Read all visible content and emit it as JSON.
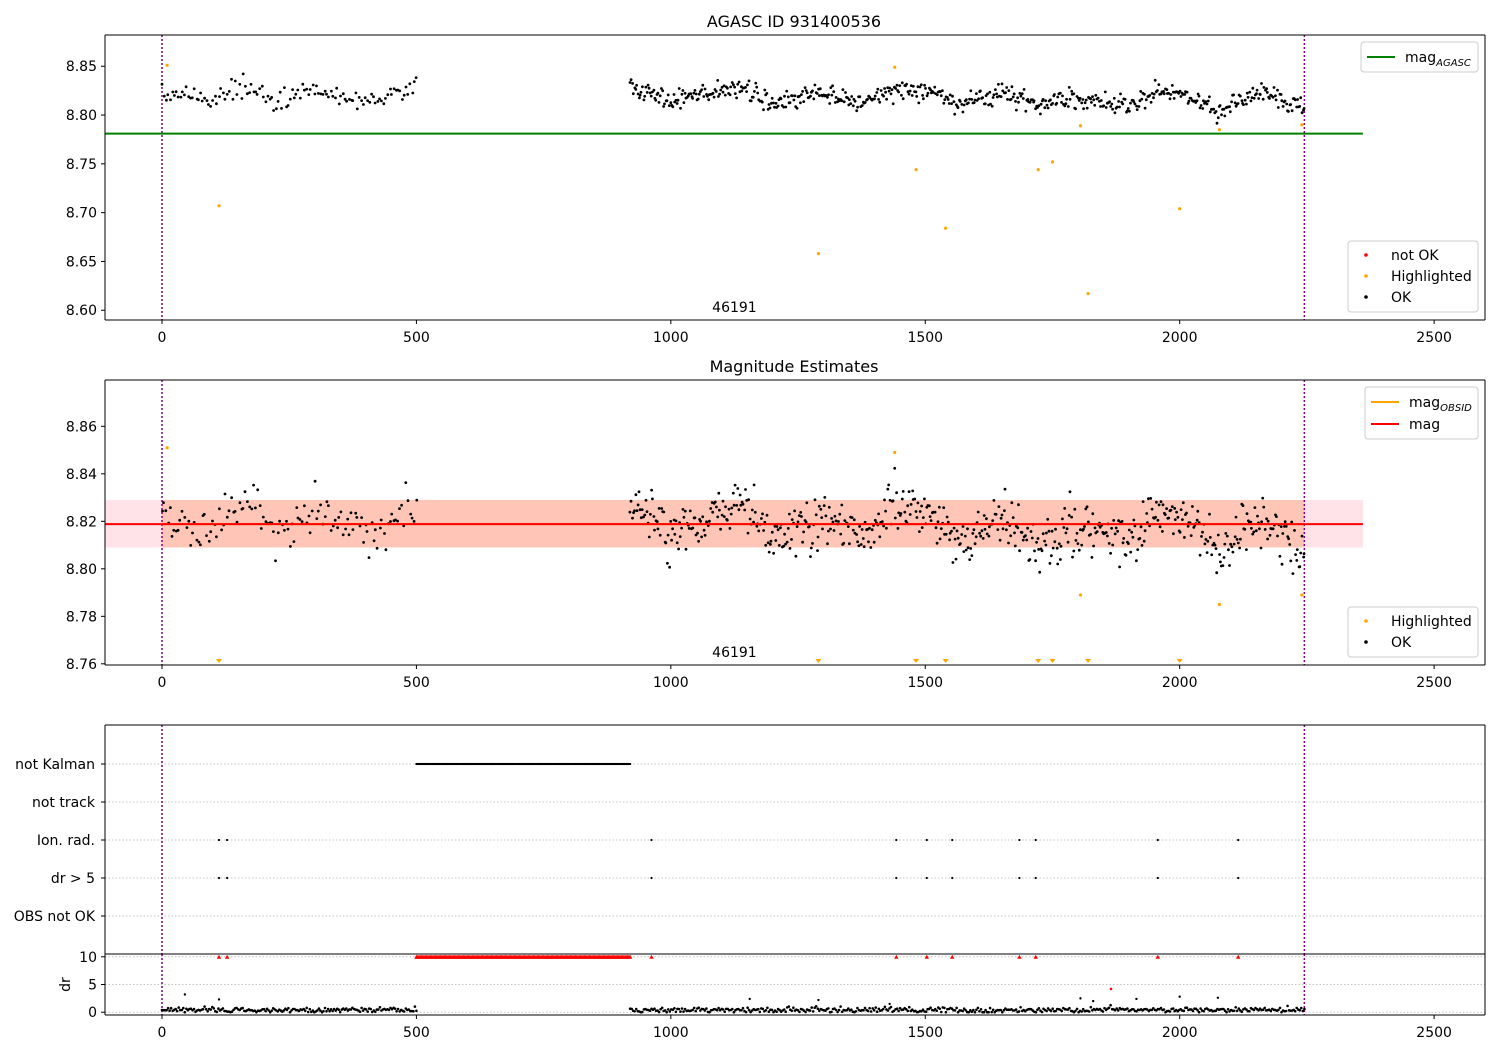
{
  "figure": {
    "colors": {
      "ok": "#000000",
      "highlighted": "#ffa500",
      "not_ok": "#ff0000",
      "agasc_line": "#008000",
      "obsid_line": "#ffa500",
      "mag_line": "#ff0000",
      "band": "#ffc0cb",
      "band_overlap": "#ffa07a",
      "obsid_boundary": "#800080"
    }
  },
  "chart_data": [
    {
      "type": "scatter",
      "title": "AGASC ID 931400536",
      "xlabel": "",
      "ylabel": "",
      "xlim": [
        -112,
        2600
      ],
      "ylim": [
        8.59,
        8.882
      ],
      "xticks": [
        0,
        500,
        1000,
        1500,
        2000,
        2500
      ],
      "xtick_labels": [
        "0",
        "500",
        "1000",
        "1500",
        "2000",
        "2500"
      ],
      "yticks": [
        8.6,
        8.65,
        8.7,
        8.75,
        8.8,
        8.85
      ],
      "ytick_labels": [
        "8.60",
        "8.65",
        "8.70",
        "8.75",
        "8.80",
        "8.85"
      ],
      "obsid_label": "46191",
      "obsid_label_x": 1125,
      "obsid_bounds": [
        0,
        2245
      ],
      "lines": [
        {
          "name": "mag_AGASC",
          "y": 8.781,
          "x": [
            -112,
            2360
          ],
          "color": "agasc_line"
        }
      ],
      "line_legend": [
        {
          "label": "mag",
          "sub": "AGASC",
          "color": "agasc_line"
        }
      ],
      "scatter_legend": [
        {
          "label": "not OK",
          "color": "not_ok"
        },
        {
          "label": "Highlighted",
          "color": "highlighted"
        },
        {
          "label": "OK",
          "color": "ok"
        }
      ],
      "ok_series": {
        "segments": [
          [
            0,
            500,
            4
          ],
          [
            920,
            2245,
            2.2
          ]
        ],
        "level_knots": [
          [
            0,
            8.826
          ],
          [
            50,
            8.818
          ],
          [
            100,
            8.816
          ],
          [
            170,
            8.831
          ],
          [
            220,
            8.814
          ],
          [
            300,
            8.826
          ],
          [
            420,
            8.812
          ],
          [
            480,
            8.826
          ],
          [
            500,
            8.825
          ],
          [
            920,
            8.828
          ],
          [
            1000,
            8.814
          ],
          [
            1140,
            8.828
          ],
          [
            1200,
            8.812
          ],
          [
            1300,
            8.822
          ],
          [
            1380,
            8.813
          ],
          [
            1440,
            8.827
          ],
          [
            1520,
            8.823
          ],
          [
            1560,
            8.811
          ],
          [
            1650,
            8.822
          ],
          [
            1720,
            8.81
          ],
          [
            1800,
            8.816
          ],
          [
            1900,
            8.81
          ],
          [
            1960,
            8.825
          ],
          [
            2030,
            8.818
          ],
          [
            2080,
            8.804
          ],
          [
            2160,
            8.824
          ],
          [
            2220,
            8.812
          ],
          [
            2245,
            8.806
          ]
        ],
        "spread": 0.009
      },
      "highlighted": [
        [
          10,
          8.851
        ],
        [
          112,
          8.707
        ],
        [
          1290,
          8.658
        ],
        [
          1440,
          8.849
        ],
        [
          1482,
          8.744
        ],
        [
          1540,
          8.684
        ],
        [
          1722,
          8.744
        ],
        [
          1750,
          8.752
        ],
        [
          1805,
          8.789
        ],
        [
          1820,
          8.617
        ],
        [
          2000,
          8.704
        ],
        [
          2078,
          8.785
        ],
        [
          2240,
          8.79
        ]
      ]
    },
    {
      "type": "scatter",
      "title": "Magnitude Estimates",
      "xlabel": "",
      "ylabel": "",
      "xlim": [
        -112,
        2600
      ],
      "ylim": [
        8.7595,
        8.8795
      ],
      "xticks": [
        0,
        500,
        1000,
        1500,
        2000,
        2500
      ],
      "xtick_labels": [
        "0",
        "500",
        "1000",
        "1500",
        "2000",
        "2500"
      ],
      "yticks": [
        8.76,
        8.78,
        8.8,
        8.82,
        8.84,
        8.86
      ],
      "ytick_labels": [
        "8.76",
        "8.78",
        "8.80",
        "8.82",
        "8.84",
        "8.86"
      ],
      "obsid_label": "46191",
      "obsid_label_x": 1125,
      "obsid_bounds": [
        0,
        2245
      ],
      "bands": [
        {
          "x": [
            -112,
            2360
          ],
          "y": [
            8.809,
            8.829
          ],
          "color": "band"
        },
        {
          "x": [
            0,
            2245
          ],
          "y": [
            8.809,
            8.829
          ],
          "color": "band_overlap"
        }
      ],
      "lines": [
        {
          "name": "mag_OBSID",
          "y": 8.8188,
          "x": [
            0,
            2245
          ],
          "color": "obsid_line"
        },
        {
          "name": "mag",
          "y": 8.8188,
          "x": [
            -112,
            2360
          ],
          "color": "mag_line"
        }
      ],
      "line_legend": [
        {
          "label": "mag",
          "sub": "OBSID",
          "color": "obsid_line"
        },
        {
          "label": "mag",
          "sub": "",
          "color": "mag_line"
        }
      ],
      "scatter_legend": [
        {
          "label": "Highlighted",
          "color": "highlighted"
        },
        {
          "label": "OK",
          "color": "ok"
        }
      ],
      "ok_series": {
        "segments": [
          [
            0,
            500,
            4
          ],
          [
            920,
            2245,
            2.2
          ]
        ],
        "level_knots": [
          [
            0,
            8.826
          ],
          [
            50,
            8.818
          ],
          [
            100,
            8.816
          ],
          [
            170,
            8.831
          ],
          [
            220,
            8.814
          ],
          [
            300,
            8.826
          ],
          [
            420,
            8.812
          ],
          [
            480,
            8.826
          ],
          [
            500,
            8.825
          ],
          [
            920,
            8.828
          ],
          [
            1000,
            8.814
          ],
          [
            1140,
            8.828
          ],
          [
            1200,
            8.812
          ],
          [
            1300,
            8.822
          ],
          [
            1380,
            8.813
          ],
          [
            1440,
            8.827
          ],
          [
            1520,
            8.823
          ],
          [
            1560,
            8.811
          ],
          [
            1650,
            8.822
          ],
          [
            1720,
            8.81
          ],
          [
            1800,
            8.816
          ],
          [
            1900,
            8.81
          ],
          [
            1960,
            8.825
          ],
          [
            2030,
            8.818
          ],
          [
            2080,
            8.804
          ],
          [
            2160,
            8.824
          ],
          [
            2220,
            8.812
          ],
          [
            2245,
            8.806
          ]
        ],
        "spread": 0.009
      },
      "highlighted": [
        [
          10,
          8.851
        ],
        [
          1440,
          8.849
        ],
        [
          1805,
          8.789
        ],
        [
          2078,
          8.785
        ],
        [
          2240,
          8.789
        ]
      ],
      "highlighted_below_axis": [
        112,
        1290,
        1482,
        1540,
        1722,
        1750,
        1820,
        2000
      ]
    },
    {
      "type": "scatter",
      "title": "",
      "xlabel": "",
      "ylabel": "",
      "xlim": [
        -112,
        2600
      ],
      "obsid_bounds": [
        0,
        2245
      ],
      "flag_rows": [
        "not Kalman",
        "not track",
        "Ion. rad.",
        "dr > 5",
        "OBS not OK"
      ],
      "flags": {
        "not Kalman": {
          "ranges": [
            [
              500,
              920
            ]
          ]
        },
        "not track": {
          "ranges": []
        },
        "Ion. rad.": {
          "points": [
            112,
            128,
            962,
            1443,
            1503,
            1553,
            1685,
            1717,
            1957,
            2115
          ]
        },
        "dr > 5": {
          "points": [
            112,
            128,
            962,
            1443,
            1503,
            1553,
            1685,
            1717,
            1957,
            2115
          ]
        },
        "OBS not OK": {
          "points": []
        }
      }
    },
    {
      "type": "scatter",
      "title": "",
      "xlabel": "",
      "ylabel": "dr",
      "xlim": [
        -112,
        2600
      ],
      "ylim": [
        -0.5,
        10.5
      ],
      "xticks": [
        0,
        500,
        1000,
        1500,
        2000,
        2500
      ],
      "xtick_labels": [
        "0",
        "500",
        "1000",
        "1500",
        "2000",
        "2500"
      ],
      "yticks": [
        0,
        5,
        10
      ],
      "ytick_labels": [
        "0",
        "5",
        "10"
      ],
      "obsid_bounds": [
        0,
        2245
      ],
      "dr_series": {
        "segments": [
          [
            0,
            500,
            3
          ],
          [
            920,
            2245,
            3
          ]
        ],
        "typical": 0.4
      },
      "dr_outliers": [
        [
          45,
          3.2
        ],
        [
          112,
          2.3
        ],
        [
          1155,
          2.4
        ],
        [
          1290,
          2.2
        ],
        [
          1430,
          1.5
        ],
        [
          1805,
          2.5
        ],
        [
          1830,
          2.0
        ],
        [
          1915,
          2.4
        ],
        [
          2000,
          2.8
        ],
        [
          2075,
          2.6
        ]
      ],
      "not_ok_capped": {
        "value": 10,
        "points": [
          112,
          128,
          962,
          1443,
          1503,
          1553,
          1685,
          1717,
          1957,
          2115
        ],
        "ranges": [
          [
            500,
            920
          ]
        ]
      },
      "not_ok_other": [
        [
          1865,
          4.2
        ]
      ]
    }
  ]
}
